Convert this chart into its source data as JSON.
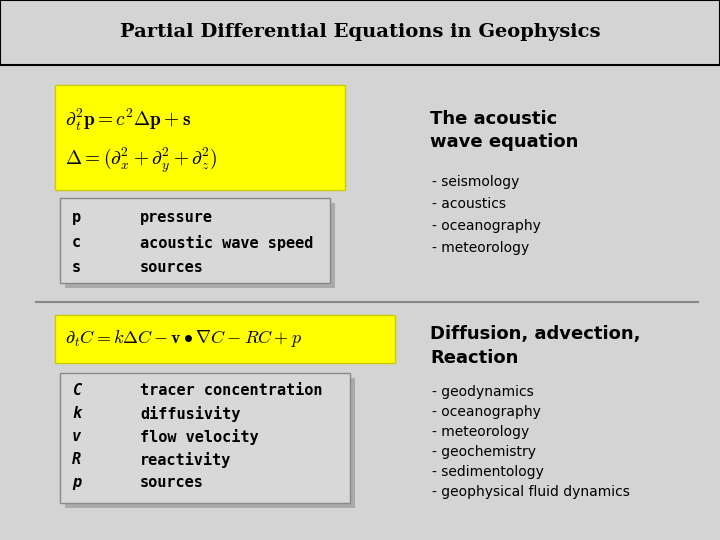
{
  "title": "Partial Differential Equations in Geophysics",
  "title_fontsize": 14,
  "bg_color": "#e8e8e8",
  "header_bg": "#d0d0d0",
  "yellow_bg": "#ffff00",
  "box_bg": "#d8d8d8",
  "eq1_latex": "$\\partial_t^2 p = c^2 \\Delta p + s$",
  "eq2_latex": "$\\Delta = (\\partial_x^2 + \\partial_y^2 + \\partial_z^2)$",
  "eq3_latex": "$\\partial_t C = k\\Delta C - \\mathbf{v} \\bullet \\nabla C - RC + p$",
  "section1_title": "The acoustic\nwave equation",
  "section1_bullets": [
    "- seismology",
    "- acoustics",
    "- oceanography",
    "- meteorology"
  ],
  "section2_title": "Diffusion, advection,\nReaction",
  "section2_bullets": [
    "- geodynamics",
    "- oceanography",
    "- meteorology",
    "- geochemistry",
    "- sedimentology",
    "- geophysical fluid dynamics"
  ],
  "vars1": [
    [
      "p",
      "pressure"
    ],
    [
      "c",
      "acoustic wave speed"
    ],
    [
      "s",
      "sources"
    ]
  ],
  "vars2": [
    [
      "C",
      "tracer concentration"
    ],
    [
      "k",
      "diffusivity"
    ],
    [
      "v",
      "flow velocity"
    ],
    [
      "R",
      "reactivity"
    ],
    [
      "p",
      "sources"
    ]
  ]
}
